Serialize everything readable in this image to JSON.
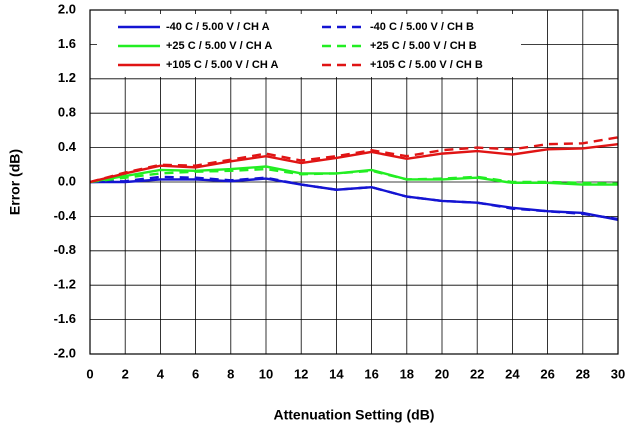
{
  "chart_data": {
    "type": "line",
    "x_label": "Attenuation Setting (dB)",
    "y_label": "Error (dB)",
    "x": [
      0,
      2,
      4,
      6,
      8,
      10,
      12,
      14,
      16,
      18,
      20,
      22,
      24,
      26,
      28,
      30
    ],
    "series": [
      {
        "name": "-40 C / 5.00 V / CH A",
        "color": "#1414d2",
        "style": "solid",
        "values": [
          0,
          0.0,
          0.03,
          0.03,
          0.01,
          0.04,
          -0.03,
          -0.09,
          -0.06,
          -0.17,
          -0.22,
          -0.24,
          -0.3,
          -0.34,
          -0.36,
          -0.44
        ]
      },
      {
        "name": "-40 C / 5.00 V / CH B",
        "color": "#1414d2",
        "style": "dashed",
        "values": [
          0,
          0.01,
          0.06,
          0.05,
          0.02,
          0.05,
          -0.03,
          -0.09,
          -0.06,
          -0.17,
          -0.22,
          -0.24,
          -0.31,
          -0.34,
          -0.37,
          -0.43
        ]
      },
      {
        "name": "+25 C / 5.00 V / CH A",
        "color": "#22ee22",
        "style": "solid",
        "values": [
          0,
          0.07,
          0.14,
          0.13,
          0.15,
          0.18,
          0.1,
          0.1,
          0.14,
          0.03,
          0.03,
          0.05,
          -0.01,
          -0.01,
          -0.03,
          -0.03
        ]
      },
      {
        "name": "+25 C / 5.00 V / CH B",
        "color": "#22ee22",
        "style": "dashed",
        "values": [
          0,
          0.05,
          0.1,
          0.12,
          0.13,
          0.15,
          0.09,
          0.1,
          0.13,
          0.03,
          0.04,
          0.06,
          0.0,
          0.0,
          -0.01,
          -0.02
        ]
      },
      {
        "name": "+105 C / 5.00 V / CH A",
        "color": "#e01414",
        "style": "solid",
        "values": [
          0,
          0.1,
          0.19,
          0.17,
          0.24,
          0.3,
          0.22,
          0.28,
          0.35,
          0.27,
          0.33,
          0.36,
          0.32,
          0.38,
          0.39,
          0.44
        ]
      },
      {
        "name": "+105 C / 5.00 V / CH B",
        "color": "#e01414",
        "style": "dashed",
        "values": [
          0,
          0.11,
          0.2,
          0.19,
          0.26,
          0.33,
          0.25,
          0.3,
          0.37,
          0.3,
          0.37,
          0.4,
          0.38,
          0.44,
          0.45,
          0.52
        ]
      }
    ],
    "xlim": [
      0,
      30
    ],
    "xticks": [
      0,
      2,
      4,
      6,
      8,
      10,
      12,
      14,
      16,
      18,
      20,
      22,
      24,
      26,
      28,
      30
    ],
    "ylim": [
      -2,
      2
    ],
    "yticks": [
      {
        "value": -2,
        "label": "-2.0"
      },
      -1.6,
      -1.2,
      -0.8,
      -0.4,
      {
        "value": 0,
        "label": "0.0"
      },
      0.4,
      0.8,
      1.2,
      1.6,
      {
        "value": 2,
        "label": "2.0"
      }
    ],
    "grid": true,
    "legend": "top"
  }
}
